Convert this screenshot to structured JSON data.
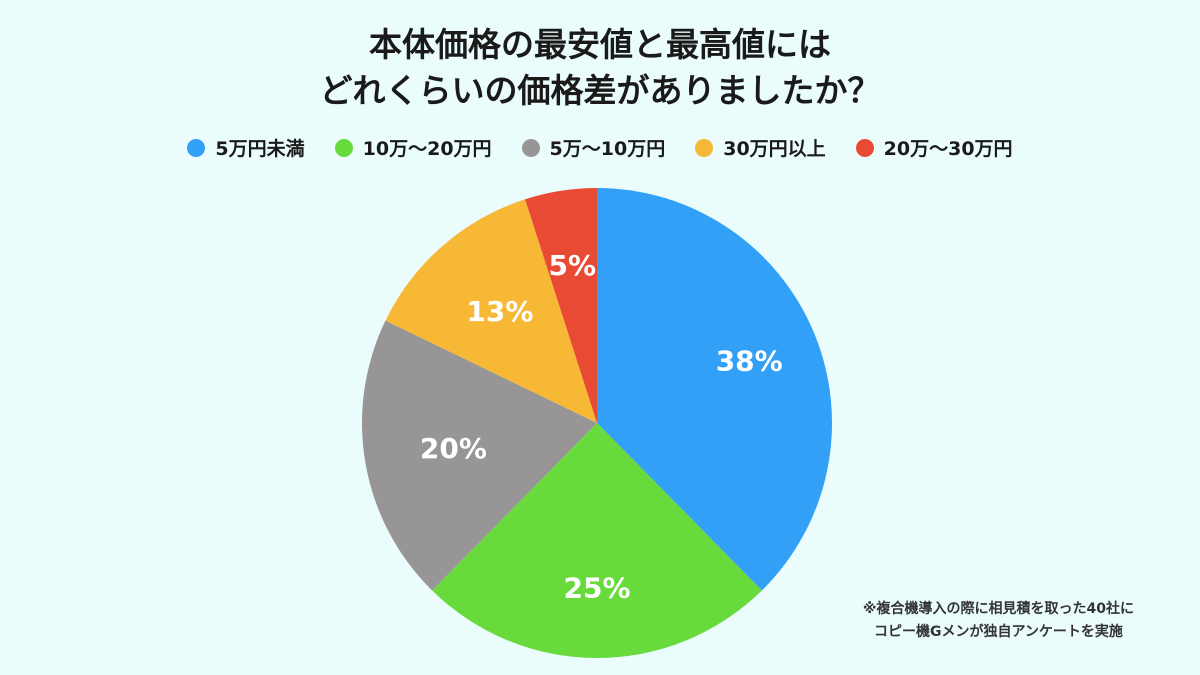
{
  "title_lines": [
    "本体価格の最安値と最高値には",
    "どれくらいの価格差がありましたか？"
  ],
  "note_lines": [
    "※複合機導入の際に相見積を取った40社に",
    "コピー機Gメンが独自アンケートを実施"
  ],
  "chart_data": {
    "type": "pie",
    "title": "本体価格の最安値と最高値にはどれくらいの価格差がありましたか？",
    "legend_position": "top",
    "slices": [
      {
        "label": "5万円未満",
        "value": 38,
        "value_label": "38%",
        "color": "#33a0f7"
      },
      {
        "label": "10万〜20万円",
        "value": 25,
        "value_label": "25%",
        "color": "#69da3b"
      },
      {
        "label": "5万〜10万円",
        "value": 20,
        "value_label": "20%",
        "color": "#979595"
      },
      {
        "label": "30万円以上",
        "value": 13,
        "value_label": "13%",
        "color": "#f7b835"
      },
      {
        "label": "20万〜30万円",
        "value": 5,
        "value_label": "5%",
        "color": "#e94a33"
      }
    ]
  }
}
